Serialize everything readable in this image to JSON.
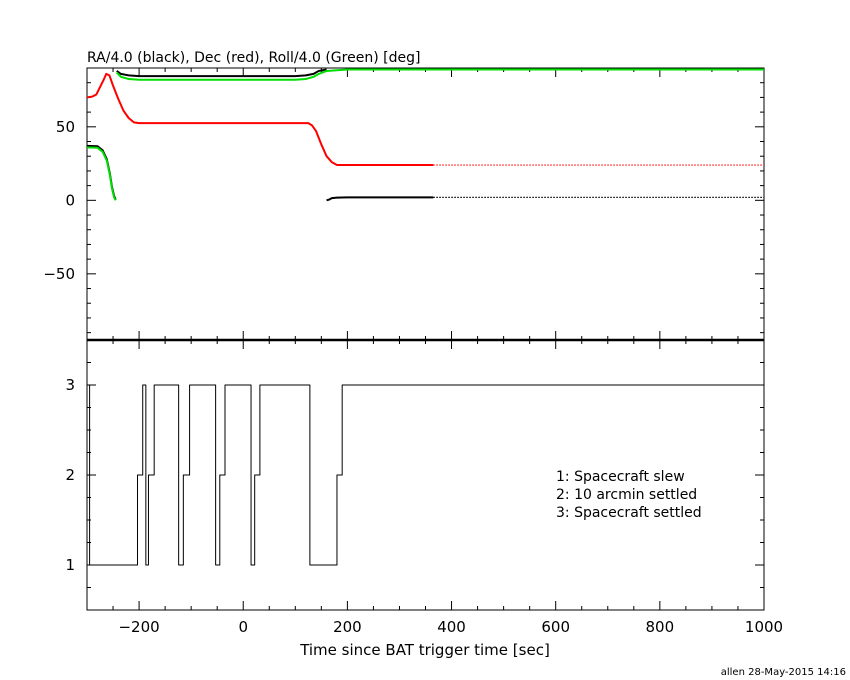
{
  "page": {
    "footer_credit": "allen 28-May-2015 14:16"
  },
  "chart_data": [
    {
      "id": "top",
      "type": "line",
      "title": "RA/4.0 (black), Dec (red), Roll/4.0 (Green) [deg]",
      "xlabel": "",
      "ylabel": "",
      "xlim": [
        -300,
        1000
      ],
      "ylim": [
        -95,
        90
      ],
      "yticks": [
        -50,
        0,
        50
      ],
      "grid": false,
      "series": [
        {
          "name": "RA/4.0",
          "color": "#000000",
          "segments": [
            {
              "x": [
                -300,
                -280,
                -270,
                -262,
                -256,
                -252,
                -248,
                -245
              ],
              "y": [
                37,
                36.8,
                34,
                28,
                18,
                9,
                3,
                0.5
              ]
            },
            {
              "x": [
                -243,
                -235,
                -220,
                -200,
                0,
                100,
                120,
                135,
                145,
                160
              ],
              "y": [
                88,
                86,
                85,
                84.5,
                84.5,
                84.5,
                85,
                86,
                88,
                89
              ]
            },
            {
              "x": [
                160,
                165,
                170,
                180,
                200,
                300,
                365
              ],
              "y": [
                0,
                0.5,
                1.5,
                1.8,
                2,
                2,
                2
              ]
            },
            {
              "x": [
                365,
                1000
              ],
              "y": [
                2,
                2
              ],
              "dotted": true
            }
          ]
        },
        {
          "name": "Dec",
          "color": "#ff0000",
          "segments": [
            {
              "x": [
                -300,
                -290,
                -282,
                -275,
                -268,
                -263,
                -257,
                -250,
                -240,
                -230,
                -220,
                -210,
                -200,
                100,
                125,
                132,
                140,
                150,
                160,
                170,
                180,
                200,
                365
              ],
              "y": [
                70,
                70.5,
                72,
                77,
                82,
                86,
                85,
                78,
                69,
                61,
                56,
                53,
                52.5,
                52.5,
                52.5,
                51,
                47,
                38,
                30,
                26,
                24,
                24,
                24
              ]
            },
            {
              "x": [
                365,
                1000
              ],
              "y": [
                24,
                24
              ],
              "dotted": true
            }
          ]
        },
        {
          "name": "Roll/4.0",
          "color": "#00dd00",
          "segments": [
            {
              "x": [
                -300,
                -280,
                -270,
                -262,
                -256,
                -252,
                -248,
                -245
              ],
              "y": [
                36,
                35.8,
                33,
                27,
                17,
                8,
                2,
                0
              ]
            },
            {
              "x": [
                -243,
                -235,
                -220,
                -200,
                0,
                100,
                120,
                135,
                145,
                160,
                200,
                300,
                1000
              ],
              "y": [
                87,
                84,
                82.5,
                82,
                82,
                82,
                82.5,
                84,
                86,
                88,
                89,
                89,
                89
              ]
            }
          ]
        }
      ]
    },
    {
      "id": "bottom",
      "type": "line",
      "title": "",
      "xlabel": "Time since BAT trigger time [sec]",
      "ylabel": "",
      "xlim": [
        -300,
        1000
      ],
      "ylim": [
        0.5,
        3.5
      ],
      "xticks": [
        -200,
        0,
        200,
        400,
        600,
        800,
        1000
      ],
      "yticks": [
        1,
        2,
        3
      ],
      "grid": false,
      "legend": [
        "1: Spacecraft slew",
        "2: 10 arcmin settled",
        "3: Spacecraft settled"
      ],
      "series": [
        {
          "name": "",
          "color": "#000000",
          "step": true,
          "x": [
            -300,
            -295,
            -203,
            -193,
            -187,
            -182,
            -171,
            -160,
            -124,
            -115,
            -103,
            -53,
            -45,
            -35,
            15,
            22,
            32,
            128,
            180,
            190,
            1000
          ],
          "y": [
            3,
            1,
            2,
            3,
            1,
            2,
            3,
            3,
            1,
            2,
            3,
            1,
            2,
            3,
            1,
            2,
            3,
            1,
            2,
            3,
            3
          ]
        }
      ]
    }
  ]
}
